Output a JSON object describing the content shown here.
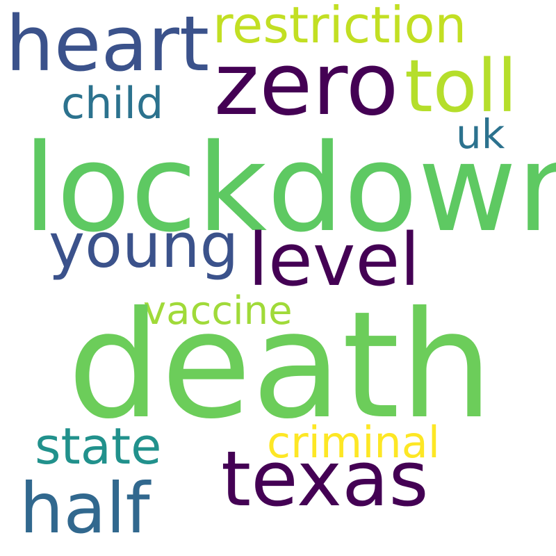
{
  "words": {
    "death": {
      "text": "death",
      "color": "#6ccd5a"
    },
    "lockdown": {
      "text": "lockdown",
      "color": "#5ec962"
    },
    "zero": {
      "text": "zero",
      "color": "#440154"
    },
    "heart": {
      "text": "heart",
      "color": "#3b528b"
    },
    "texas": {
      "text": "texas",
      "color": "#440154"
    },
    "level": {
      "text": "level",
      "color": "#440154"
    },
    "toll": {
      "text": "toll",
      "color": "#b5de2b"
    },
    "half": {
      "text": "half",
      "color": "#31688e"
    },
    "young": {
      "text": "young",
      "color": "#3b528b"
    },
    "restriction": {
      "text": "restriction",
      "color": "#c2df23"
    },
    "state": {
      "text": "state",
      "color": "#21918c"
    },
    "criminal": {
      "text": "criminal",
      "color": "#fde725"
    },
    "child": {
      "text": "child",
      "color": "#2c728e"
    },
    "vaccine": {
      "text": "vaccine",
      "color": "#a0da39"
    },
    "uk": {
      "text": "uk",
      "color": "#2c728e"
    }
  }
}
